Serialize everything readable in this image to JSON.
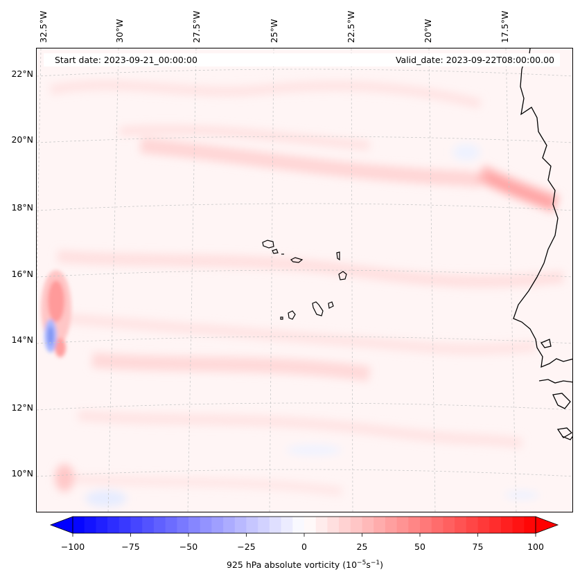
{
  "map": {
    "start_date": "Start date: 2023-09-21_00:00:00",
    "valid_date": "Valid_date: 2023-09-22T08:00:00.00",
    "lon_labels": [
      "32.5°W",
      "30°W",
      "27.5°W",
      "25°W",
      "22.5°W",
      "20°W",
      "17.5°W"
    ],
    "lat_labels": [
      "22°N",
      "20°N",
      "18°N",
      "16°N",
      "14°N",
      "12°N",
      "10°N"
    ],
    "field_name": "925 hPa absolute vorticity",
    "region": "Cabo Verde islands and West African coast (Senegal, Mauritania)"
  },
  "colorbar": {
    "label_prefix": "925 hPa absolute vorticity (10",
    "label_exp1": "−5",
    "label_mid": "s",
    "label_exp2": "−1",
    "label_suffix": ")",
    "ticks": [
      "−100",
      "−75",
      "−50",
      "−25",
      "0",
      "25",
      "50",
      "75",
      "100"
    ],
    "min": -100,
    "max": 100,
    "low_color": "#0000ff",
    "mid_color": "#ffffff",
    "high_color": "#ff0000"
  }
}
